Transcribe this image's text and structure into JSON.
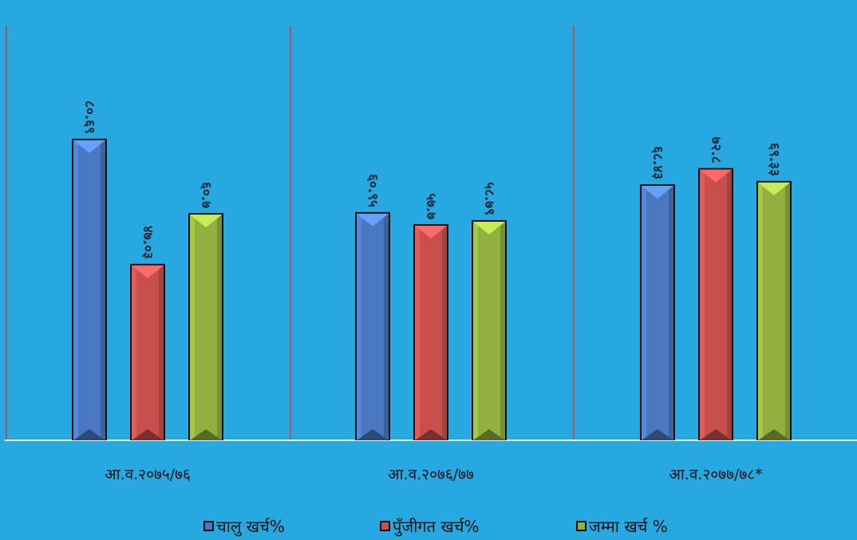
{
  "chart_data": {
    "type": "bar",
    "title": "",
    "categories": [
      "आ.व.२०७५/७६",
      "आ.व.२०७६/७७",
      "आ.व.२०७७/७८*"
    ],
    "series": [
      {
        "name": "चालु खर्च%",
        "color": "#4a78c0",
        "values": [
          80.69,
          60.95,
          68.43
        ],
        "labels": [
          "८०.६९",
          "६०.९५",
          "६८.४३"
        ]
      },
      {
        "name": "पुँजीगत खर्च%",
        "color": "#c8504c",
        "values": [
          47.03,
          57.7,
          72.8
        ],
        "labels": [
          "४७.०३",
          "५७.७",
          "७२.८"
        ]
      },
      {
        "name": "जम्मा खर्च %",
        "color": "#92b040",
        "values": [
          60.7,
          58.79,
          69.33
        ],
        "labels": [
          "६०.७",
          "५८.७९",
          "६९.३३"
        ]
      }
    ],
    "ylim": [
      0,
      100
    ],
    "legend_position": "bottom"
  }
}
